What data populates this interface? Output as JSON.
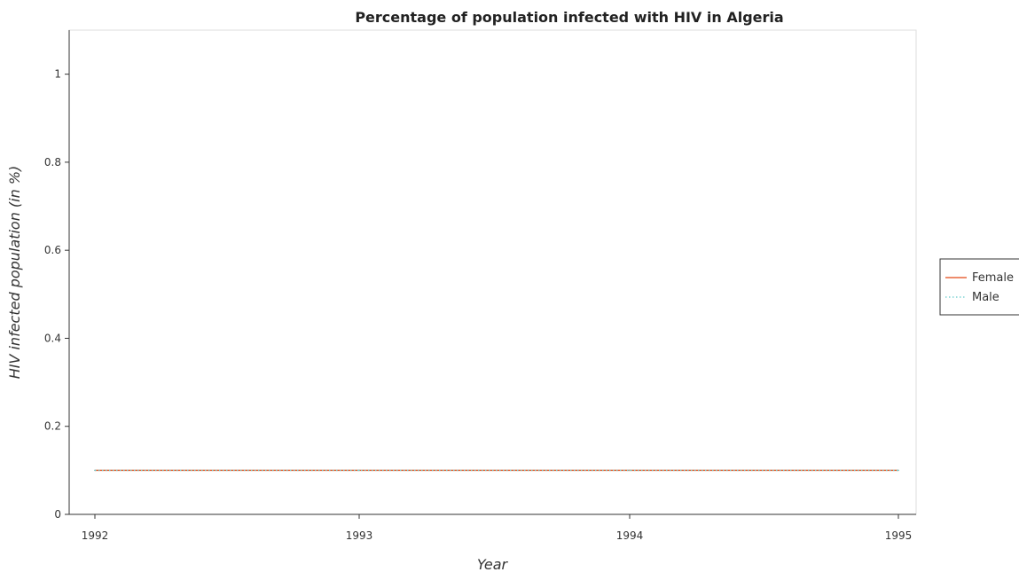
{
  "chart_data": {
    "type": "line",
    "title": "Percentage of population infected with HIV in Algeria",
    "xlabel": "Year",
    "ylabel": "HIV infected population (in %)",
    "categories": [
      "1992",
      "1993",
      "1994",
      "1995"
    ],
    "yticks": [
      "0",
      "0.2",
      "0.4",
      "0.6",
      "0.8",
      "1"
    ],
    "ylim": [
      0,
      1.1
    ],
    "grid": false,
    "legend_position": "right",
    "series": [
      {
        "name": "Female",
        "values": [
          0.1,
          0.1,
          0.1,
          0.1
        ],
        "color": "#e8663b",
        "dash": "solid"
      },
      {
        "name": "Male",
        "values": [
          0.1,
          0.1,
          0.1,
          0.1
        ],
        "color": "#7fd4d4",
        "dash": "dotted"
      }
    ]
  }
}
